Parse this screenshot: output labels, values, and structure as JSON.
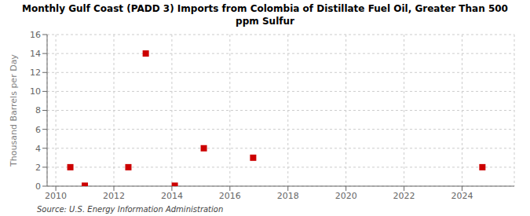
{
  "chart_data": {
    "type": "scatter",
    "title": "Monthly Gulf Coast (PADD 3) Imports from Colombia of Distillate Fuel Oil, Greater Than 500\nppm Sulfur",
    "ylabel": "Thousand Barrels per Day",
    "annotation": "Source: U.S. Energy Information Administration",
    "x": [
      2010.5,
      2011.0,
      2012.5,
      2013.1,
      2014.1,
      2015.1,
      2016.8,
      2024.7
    ],
    "values": [
      2.0,
      0.05,
      2.0,
      14.0,
      0.05,
      4.0,
      3.0,
      2.0
    ],
    "color": "#cc0000",
    "marker": "square",
    "xlim": [
      2009.7,
      2025.8
    ],
    "ylim": [
      0,
      16
    ],
    "xticks": [
      2010,
      2012,
      2014,
      2016,
      2018,
      2020,
      2022,
      2024
    ],
    "yticks": [
      0,
      2,
      4,
      6,
      8,
      10,
      12,
      14,
      16
    ],
    "grid": true
  }
}
